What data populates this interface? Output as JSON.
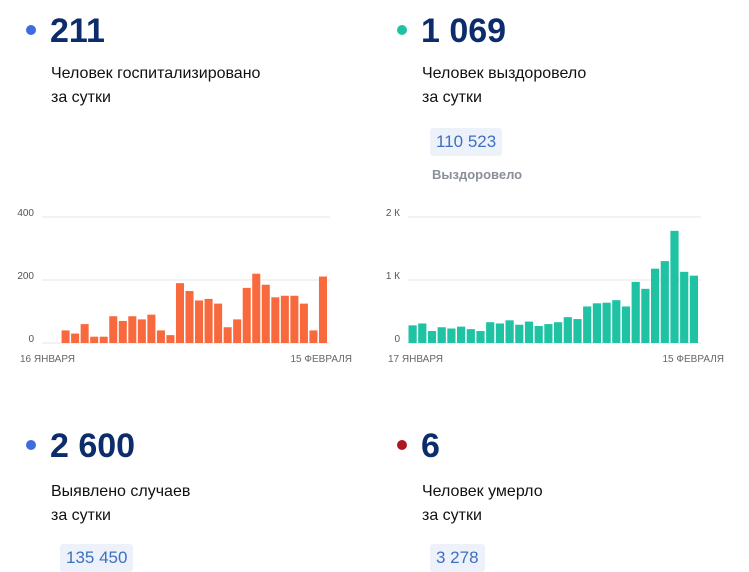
{
  "stats": {
    "hospitalized": {
      "value": "211",
      "line1": "Человек госпитализировано",
      "line2": "за сутки",
      "dot_color": "#3d6be0"
    },
    "recovered": {
      "value": "1 069",
      "line1": "Человек выздоровело",
      "line2": "за сутки",
      "total": "110 523",
      "total_label": "Выздоровело",
      "dot_color": "#1fc3a3"
    },
    "cases": {
      "value": "2 600",
      "line1": "Выявлено случаев",
      "line2": "за сутки",
      "total": "135 450",
      "dot_color": "#3d6be0"
    },
    "deaths": {
      "value": "6",
      "line1": "Человек умерло",
      "line2": "за сутки",
      "total": "3 278",
      "dot_color": "#b0161e"
    }
  },
  "chart_data": [
    {
      "type": "bar",
      "color": "#f86a3d",
      "x_start_label": "16 ЯНВАРЯ",
      "x_end_label": "15 ФЕВРАЛЯ",
      "y_ticks": [
        0,
        200,
        400
      ],
      "y_tick_labels": [
        "0",
        "200",
        "400"
      ],
      "ylim": [
        0,
        400
      ],
      "grid": true,
      "values": [
        0,
        0,
        40,
        30,
        60,
        20,
        20,
        85,
        70,
        85,
        75,
        90,
        40,
        25,
        190,
        165,
        135,
        140,
        125,
        50,
        75,
        175,
        220,
        185,
        145,
        150,
        150,
        125,
        40,
        211
      ]
    },
    {
      "type": "bar",
      "color": "#1fc3a3",
      "x_start_label": "17 ЯНВАРЯ",
      "x_end_label": "15 ФЕВРАЛЯ",
      "y_ticks": [
        0,
        1000,
        2000
      ],
      "y_tick_labels": [
        "0",
        "1 К",
        "2 К"
      ],
      "ylim": [
        0,
        2000
      ],
      "grid": true,
      "values": [
        280,
        310,
        190,
        250,
        230,
        260,
        220,
        190,
        330,
        310,
        360,
        290,
        340,
        270,
        300,
        330,
        410,
        380,
        580,
        630,
        640,
        680,
        580,
        970,
        860,
        1180,
        1300,
        1780,
        1130,
        1069
      ]
    }
  ]
}
